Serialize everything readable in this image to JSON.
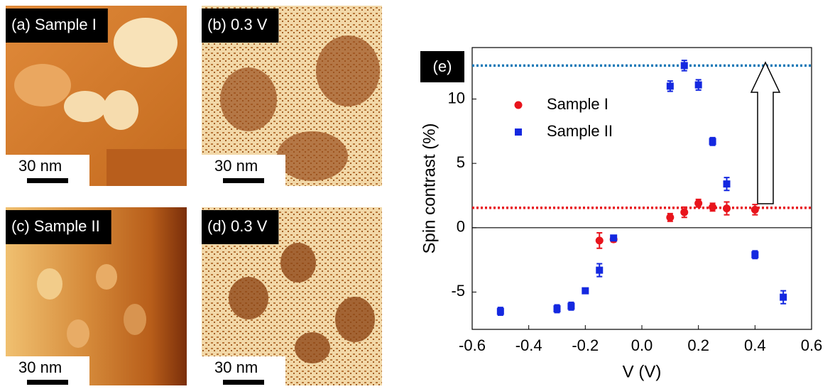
{
  "panels": [
    {
      "label": "(a) Sample I",
      "scale": "30 nm"
    },
    {
      "label": "(b) 0.3 V",
      "scale": "30 nm"
    },
    {
      "label": "(c) Sample II",
      "scale": "30 nm"
    },
    {
      "label": "(d) 0.3 V",
      "scale": "30 nm"
    }
  ],
  "chart_data": {
    "type": "scatter",
    "panel_label": "(e)",
    "x_label": "V (V)",
    "y_label": "Spin contrast (%)",
    "xlim": [
      -0.6,
      0.6
    ],
    "ylim": [
      -7.9,
      14
    ],
    "xticks": [
      -0.6,
      -0.4,
      -0.2,
      {
        "value": 0,
        "label": "0.0"
      },
      0.2,
      0.4,
      0.6
    ],
    "yticks": [
      -5,
      0,
      5,
      10
    ],
    "legend": "upper left",
    "series": [
      {
        "name": "Sample I",
        "color": "#e8141c",
        "marker": "circle",
        "x": [
          -0.15,
          -0.1,
          0.1,
          0.15,
          0.2,
          0.25,
          0.3,
          0.4
        ],
        "values": [
          -1.0,
          -0.9,
          0.8,
          1.2,
          1.9,
          1.6,
          1.5,
          1.4
        ],
        "errors": [
          0.6,
          0.2,
          0.3,
          0.4,
          0.3,
          0.3,
          0.5,
          0.4
        ]
      },
      {
        "name": "Sample II",
        "color": "#1428e0",
        "marker": "square",
        "x": [
          -0.5,
          -0.3,
          -0.25,
          -0.2,
          -0.15,
          -0.1,
          0.1,
          0.15,
          0.2,
          0.25,
          0.3,
          0.4,
          0.5
        ],
        "values": [
          -6.5,
          -6.3,
          -6.1,
          -4.9,
          -3.3,
          -0.8,
          11.0,
          12.6,
          11.1,
          6.7,
          3.4,
          -2.1,
          -5.4
        ],
        "errors": [
          0.3,
          0.3,
          0.3,
          0.15,
          0.5,
          0.2,
          0.4,
          0.4,
          0.4,
          0.3,
          0.5,
          0.3,
          0.5
        ]
      }
    ],
    "reference_lines": [
      {
        "value": 1.55,
        "color": "#e8141c"
      },
      {
        "value": 12.6,
        "color": "#1a7ab8"
      }
    ]
  }
}
